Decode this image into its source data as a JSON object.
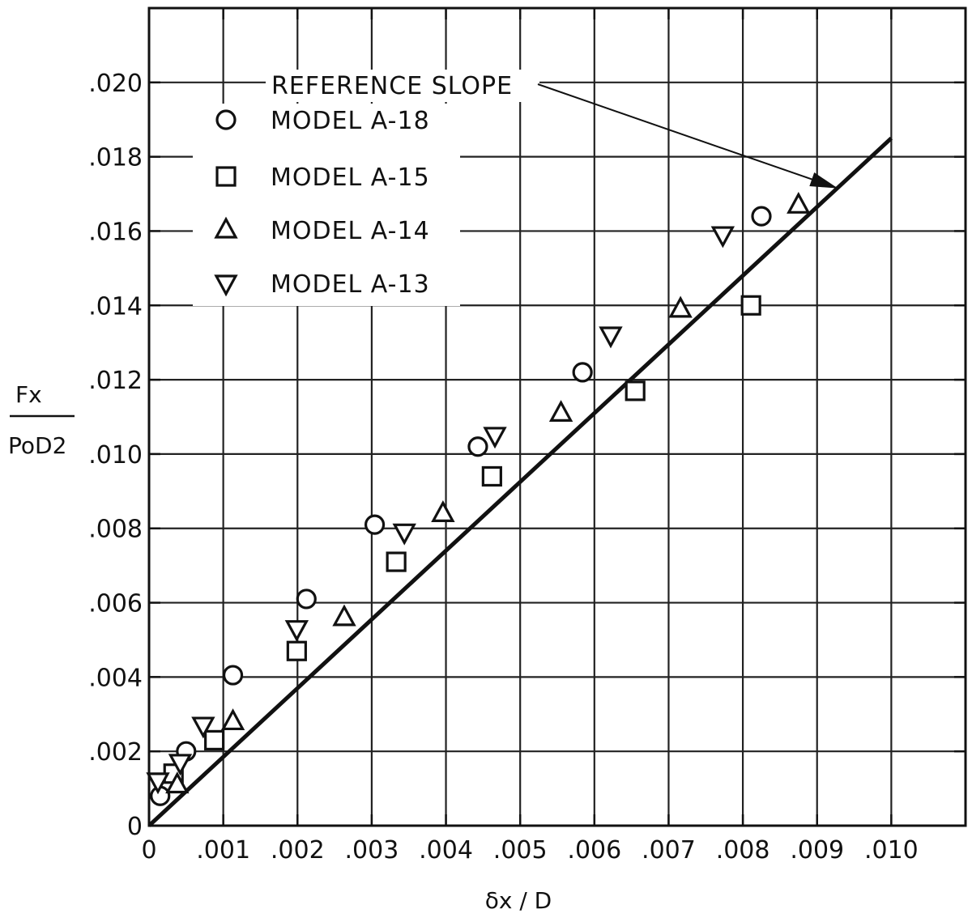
{
  "chart_data": {
    "type": "scatter",
    "xlim": [
      0,
      0.011
    ],
    "ylim": [
      0,
      0.022
    ],
    "x_ticks": [
      0,
      0.001,
      0.002,
      0.003,
      0.004,
      0.005,
      0.006,
      0.007,
      0.008,
      0.009,
      0.01,
      0.011
    ],
    "x_tick_labels": [
      "0",
      ".001",
      ".002",
      ".003",
      ".004",
      ".005",
      ".006",
      ".007",
      ".008",
      ".009",
      ".010"
    ],
    "y_ticks": [
      0,
      0.002,
      0.004,
      0.006,
      0.008,
      0.01,
      0.012,
      0.014,
      0.016,
      0.018,
      0.02,
      0.022
    ],
    "y_tick_labels": [
      "0",
      ".002",
      ".004",
      ".006",
      ".008",
      ".010",
      ".012",
      ".014",
      ".016",
      ".018",
      ".020"
    ],
    "grid": true,
    "legend_position": "top-left",
    "xlabel": "δx / D",
    "ylabel": {
      "numerator": "Fx",
      "denominator": "PoD2"
    },
    "reference_line": {
      "label": "REFERENCE SLOPE",
      "points": [
        [
          0,
          0
        ],
        [
          0.01,
          0.0185
        ]
      ]
    },
    "series": [
      {
        "name": "MODEL A-18",
        "marker": "circle",
        "points": [
          [
            0.00015,
            0.0008
          ],
          [
            0.0005,
            0.002
          ],
          [
            0.00113,
            0.00405
          ],
          [
            0.00212,
            0.0061
          ],
          [
            0.00304,
            0.0081
          ],
          [
            0.00443,
            0.0102
          ],
          [
            0.00584,
            0.0122
          ],
          [
            0.00825,
            0.0164
          ]
        ]
      },
      {
        "name": "MODEL A-15",
        "marker": "square",
        "points": [
          [
            0.00033,
            0.0014
          ],
          [
            0.00088,
            0.0023
          ],
          [
            0.00199,
            0.0047
          ],
          [
            0.00333,
            0.0071
          ],
          [
            0.00462,
            0.0094
          ],
          [
            0.00655,
            0.0117
          ],
          [
            0.00811,
            0.014
          ]
        ]
      },
      {
        "name": "MODEL A-14",
        "marker": "triangle-up",
        "points": [
          [
            0.00038,
            0.0011
          ],
          [
            0.00113,
            0.0028
          ],
          [
            0.00263,
            0.0056
          ],
          [
            0.00396,
            0.0084
          ],
          [
            0.00555,
            0.0111
          ],
          [
            0.00716,
            0.0139
          ],
          [
            0.00875,
            0.0167
          ]
        ]
      },
      {
        "name": "MODEL A-13",
        "marker": "triangle-down",
        "points": [
          [
            0.00012,
            0.0012
          ],
          [
            0.00042,
            0.0017
          ],
          [
            0.00073,
            0.0027
          ],
          [
            0.00199,
            0.0053
          ],
          [
            0.00344,
            0.0079
          ],
          [
            0.00466,
            0.0105
          ],
          [
            0.00622,
            0.0132
          ],
          [
            0.00773,
            0.0159
          ]
        ]
      }
    ]
  }
}
